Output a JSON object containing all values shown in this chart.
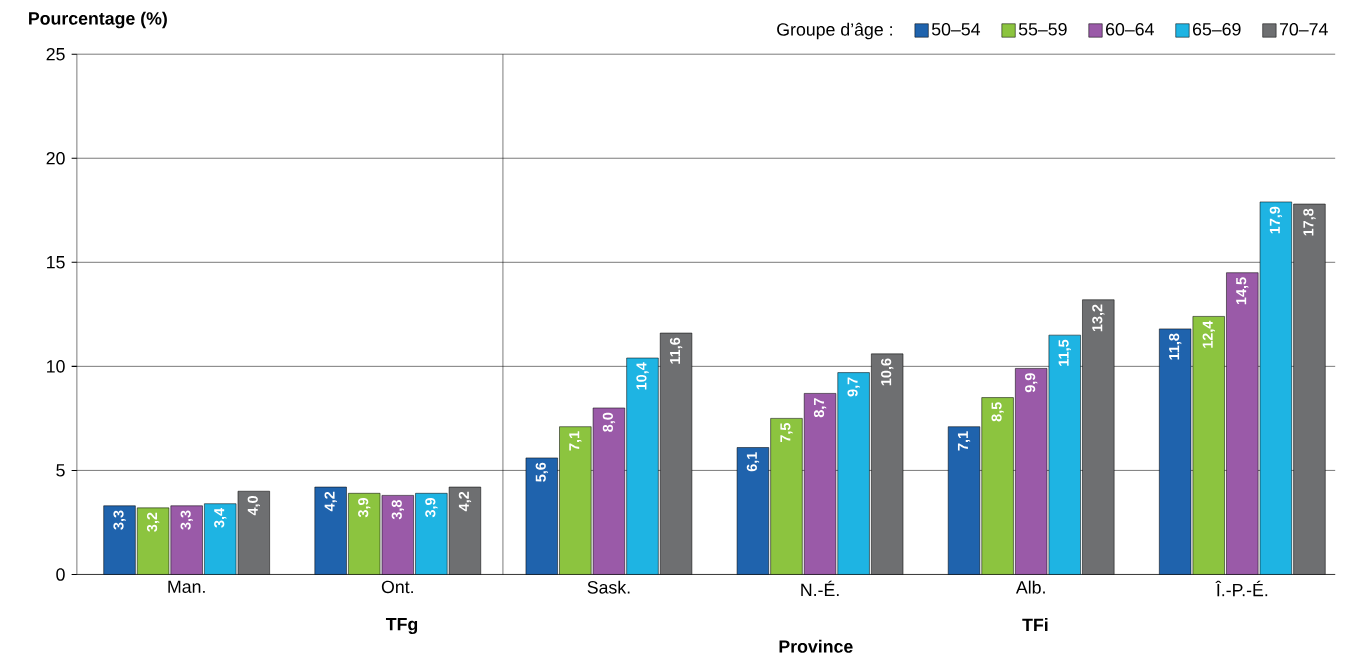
{
  "chart_data": {
    "type": "bar",
    "ylabel": "Pourcentage (%)",
    "xlabel": "Province",
    "legend_title": "Groupe d’âge :",
    "categories": [
      "Man.",
      "Ont.",
      "Sask.",
      "N.-É.",
      "Alb.",
      "Î.-P.-É."
    ],
    "series": [
      {
        "name": "50–54",
        "color": "#1f63ad",
        "values": [
          3.3,
          4.2,
          5.6,
          6.1,
          7.1,
          11.8
        ],
        "value_labels": [
          "3,3",
          "4,2",
          "5,6",
          "6,1",
          "7,1",
          "11,8"
        ]
      },
      {
        "name": "55–59",
        "color": "#8cc43f",
        "values": [
          3.2,
          3.9,
          7.1,
          7.5,
          8.5,
          12.4
        ],
        "value_labels": [
          "3,2",
          "3,9",
          "7,1",
          "7,5",
          "8,5",
          "12,4"
        ]
      },
      {
        "name": "60–64",
        "color": "#9a5aa8",
        "values": [
          3.3,
          3.8,
          8.0,
          8.7,
          9.9,
          14.5
        ],
        "value_labels": [
          "3,3",
          "3,8",
          "8,0",
          "8,7",
          "9,9",
          "14,5"
        ]
      },
      {
        "name": "65–69",
        "color": "#1eb4e3",
        "values": [
          3.4,
          3.9,
          10.4,
          9.7,
          11.5,
          17.9
        ],
        "value_labels": [
          "3,4",
          "3,9",
          "10,4",
          "9,7",
          "11,5",
          "17,9"
        ]
      },
      {
        "name": "70–74",
        "color": "#6e6f71",
        "values": [
          4.0,
          4.2,
          11.6,
          10.6,
          13.2,
          17.8
        ],
        "value_labels": [
          "4,0",
          "4,2",
          "11,6",
          "10,6",
          "13,2",
          "17,8"
        ]
      }
    ],
    "ylim": [
      0,
      25
    ],
    "yticks": [
      0,
      5,
      10,
      15,
      20,
      25
    ],
    "grid": "y",
    "legend": "top right",
    "annotations": [
      "TFg",
      "TFi"
    ]
  }
}
